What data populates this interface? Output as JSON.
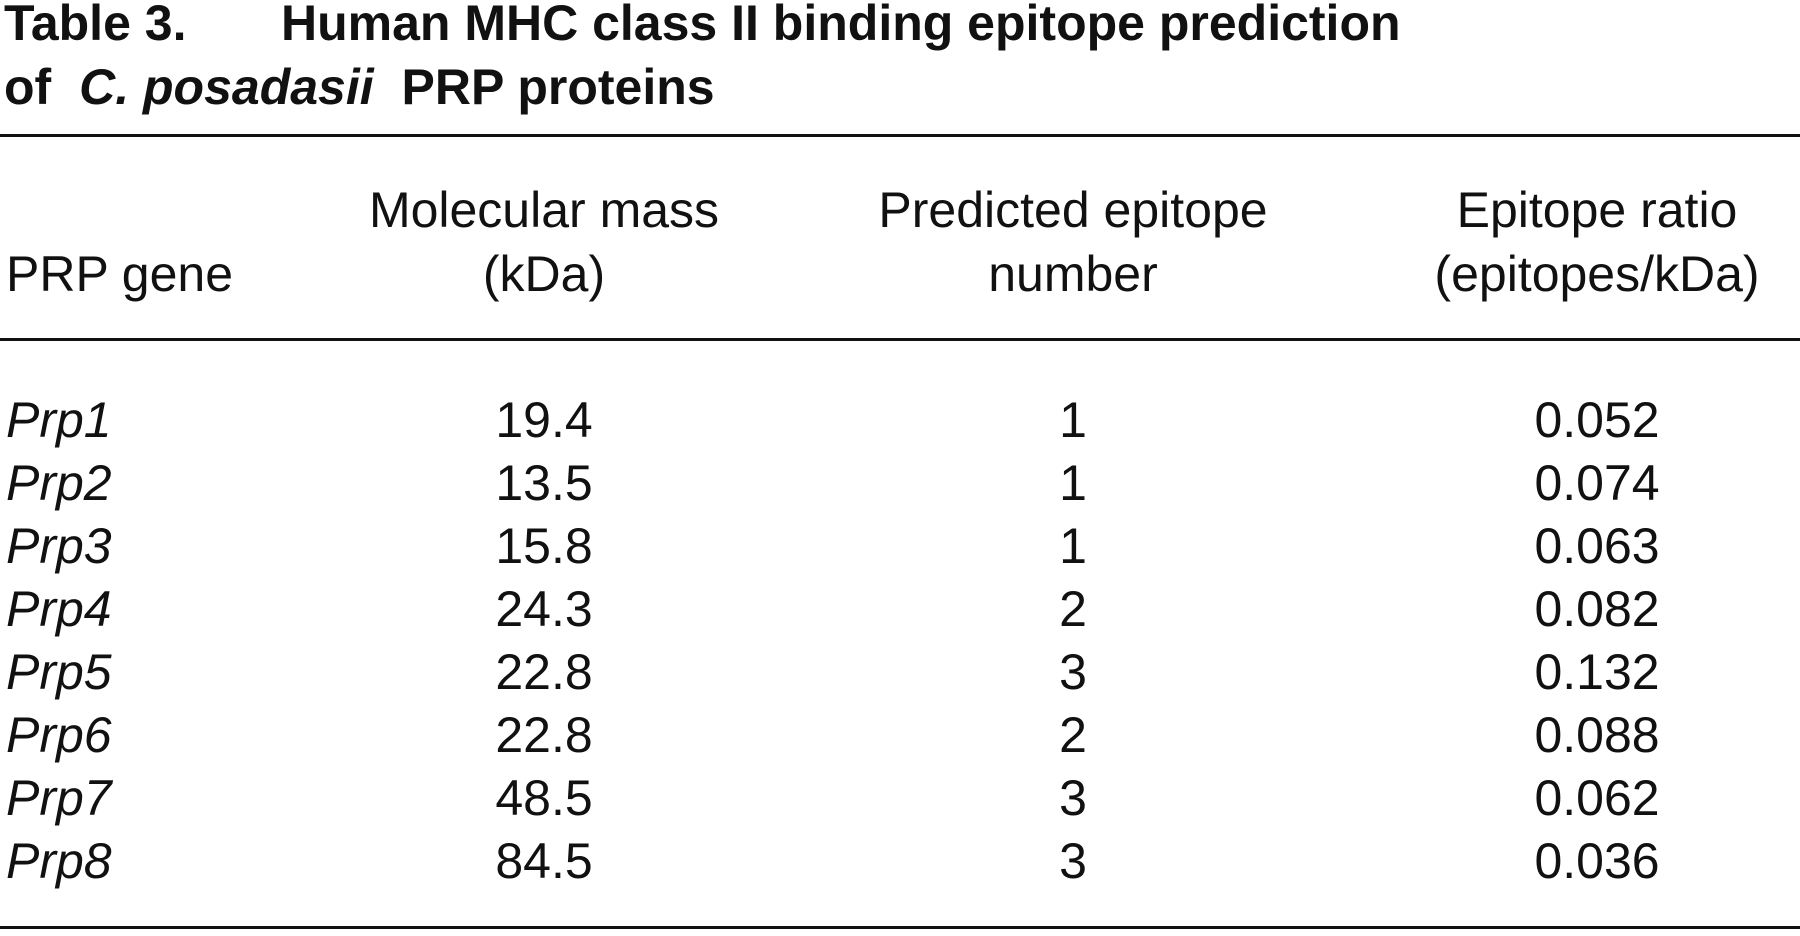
{
  "caption": {
    "label": "Table 3.",
    "title_line1": "Human MHC class II binding epitope prediction",
    "title_line2_start": "of",
    "species": "C. posadasii",
    "title_line2_end": "PRP proteins"
  },
  "table": {
    "headers": [
      [
        "PRP gene"
      ],
      [
        "Molecular mass",
        "(kDa)"
      ],
      [
        "Predicted epitope",
        "number"
      ],
      [
        "Epitope ratio",
        "(epitopes/kDa)"
      ]
    ],
    "rows": [
      [
        "Prp1",
        19.4,
        1,
        0.052
      ],
      [
        "Prp2",
        13.5,
        1,
        0.074
      ],
      [
        "Prp3",
        15.8,
        1,
        0.063
      ],
      [
        "Prp4",
        24.3,
        2,
        0.082
      ],
      [
        "Prp5",
        22.8,
        3,
        0.132
      ],
      [
        "Prp6",
        22.8,
        2,
        0.088
      ],
      [
        "Prp7",
        48.5,
        3,
        0.062
      ],
      [
        "Prp8",
        84.5,
        3,
        0.036
      ]
    ]
  }
}
